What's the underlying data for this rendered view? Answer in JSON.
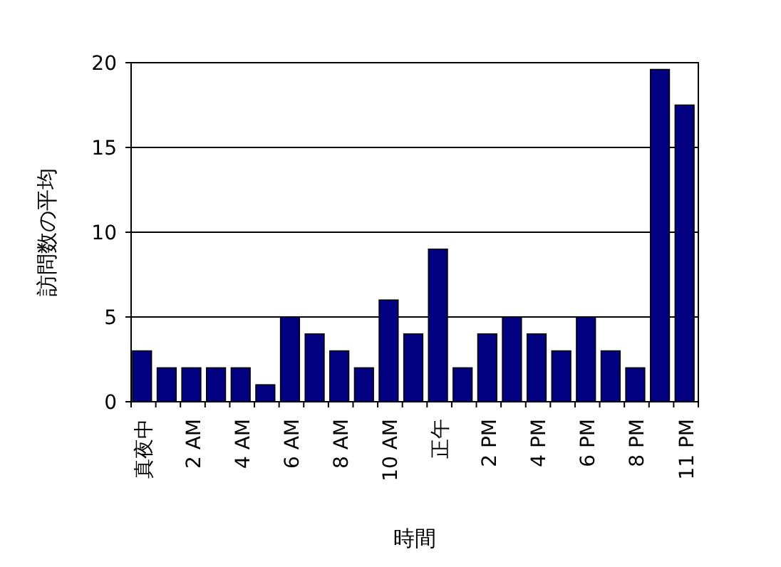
{
  "chart_data": {
    "type": "bar",
    "xlabel": "時間",
    "ylabel": "訪問数の平均",
    "categories": [
      "真夜中",
      null,
      "2 AM",
      null,
      "4 AM",
      null,
      "6 AM",
      null,
      "8 AM",
      null,
      "10 AM",
      null,
      "正午",
      null,
      "2 PM",
      null,
      "4 PM",
      null,
      "6 PM",
      null,
      "8 PM",
      null,
      "11 PM"
    ],
    "values": [
      3,
      2,
      2,
      2,
      2,
      1,
      5,
      4,
      3,
      2,
      6,
      4,
      9,
      2,
      4,
      5,
      4,
      3,
      5,
      3,
      2,
      19.6,
      17.5
    ],
    "color": "#000080",
    "ylim": [
      0,
      20
    ],
    "yticks": [
      0,
      5,
      10,
      15,
      20
    ],
    "grid": "y"
  }
}
